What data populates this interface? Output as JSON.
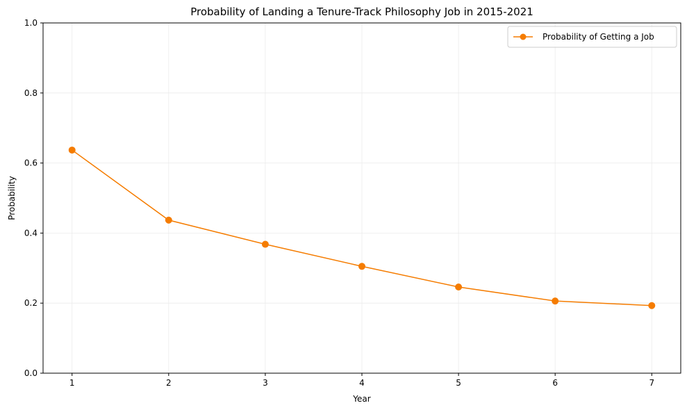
{
  "chart_data": {
    "type": "line",
    "title": "Probability of Landing a Tenure-Track Philosophy Job in 2015-2021",
    "xlabel": "Year",
    "ylabel": "Probability",
    "x": [
      1,
      2,
      3,
      4,
      5,
      6,
      7
    ],
    "x_tick_labels": [
      "1",
      "2",
      "3",
      "4",
      "5",
      "6",
      "7"
    ],
    "xlim": [
      0.7,
      7.3
    ],
    "ylim": [
      0,
      1
    ],
    "y_ticks": [
      0,
      0.2,
      0.4,
      0.6,
      0.8,
      1.0
    ],
    "y_tick_labels": [
      "0.0",
      "0.2",
      "0.4",
      "0.6",
      "0.8",
      "1.0"
    ],
    "grid": true,
    "legend_position": "top-right",
    "series": [
      {
        "name": "Probability of Getting a Job",
        "color": "#f57c00",
        "marker": "circle",
        "values": [
          0.637,
          0.437,
          0.368,
          0.305,
          0.246,
          0.206,
          0.193
        ]
      }
    ]
  }
}
